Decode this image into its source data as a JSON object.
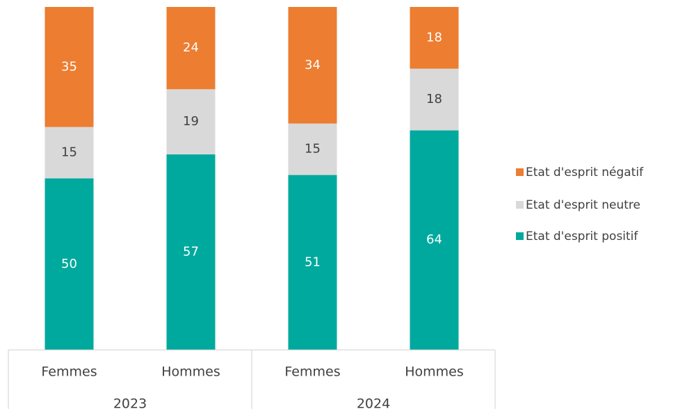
{
  "chart_data": {
    "type": "stacked_bar",
    "categories": [
      "Femmes",
      "Hommes",
      "Femmes",
      "Hommes"
    ],
    "groups": [
      "2023",
      "2024"
    ],
    "series": [
      {
        "name": "Etat d'esprit positif",
        "color": "#00A99D",
        "label_color": "#ffffff",
        "values": [
          50,
          57,
          51,
          64
        ]
      },
      {
        "name": "Etat d'esprit neutre",
        "color": "#D9D9D9",
        "label_color": "#404040",
        "values": [
          15,
          19,
          15,
          18
        ]
      },
      {
        "name": "Etat d'esprit négatif",
        "color": "#ED7D31",
        "label_color": "#ffffff",
        "values": [
          35,
          24,
          34,
          18
        ]
      }
    ],
    "ylim": [
      0,
      100
    ],
    "legend": "right"
  }
}
